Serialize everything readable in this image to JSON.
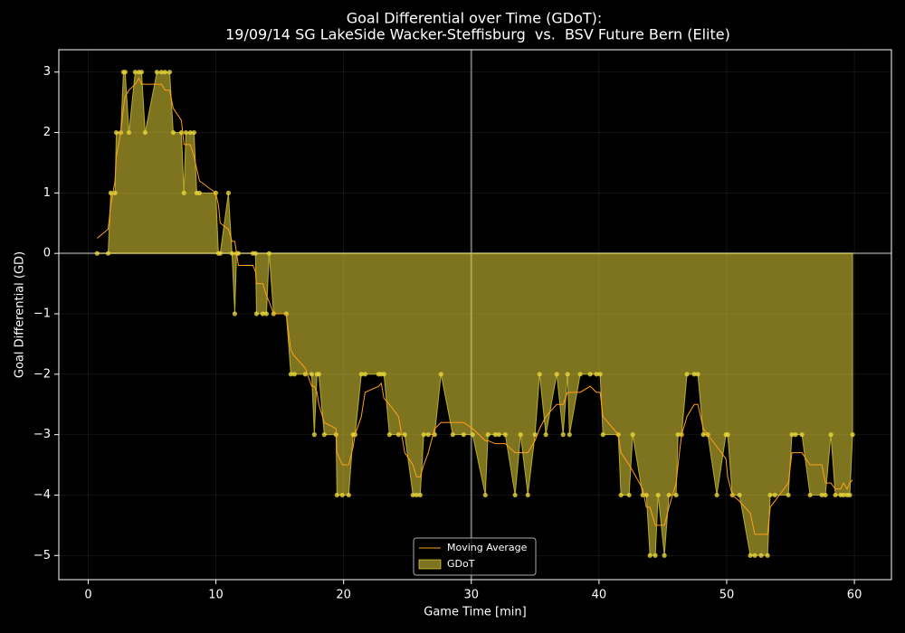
{
  "chart_data": {
    "type": "area",
    "title": "Goal Differential over Time (GDoT):",
    "subtitle": "19/09/14 SG LakeSide Wacker-Steffisburg  vs.  BSV Future Bern (Elite)",
    "x_label": "Game Time [min]",
    "y_label": "Goal Differential (GD)",
    "xlim": [
      -2.3,
      62.9
    ],
    "ylim": [
      -5.4,
      3.37
    ],
    "xticks": [
      0,
      10,
      20,
      30,
      40,
      50,
      60
    ],
    "yticks": [
      {
        "value": -5,
        "label": "−5"
      },
      {
        "value": -4,
        "label": "−4"
      },
      {
        "value": -3,
        "label": "−3"
      },
      {
        "value": -2,
        "label": "−2"
      },
      {
        "value": -1,
        "label": "−1"
      },
      0,
      1,
      2,
      3
    ],
    "grid": true,
    "vline": 30,
    "hline": 0,
    "legend": "lower center",
    "x": [
      0.7,
      1.56,
      1.77,
      2.1,
      2.2,
      2.55,
      2.76,
      2.9,
      3.19,
      3.68,
      3.97,
      4.18,
      4.46,
      5.38,
      5.74,
      6.02,
      6.38,
      6.66,
      7.3,
      7.5,
      7.65,
      8.0,
      8.29,
      8.5,
      8.71,
      9.99,
      10.2,
      10.34,
      10.98,
      11.26,
      11.48,
      11.62,
      11.76,
      12.9,
      13.1,
      13.18,
      13.67,
      13.96,
      14.17,
      14.52,
      15.51,
      15.87,
      16.15,
      17.0,
      17.5,
      17.71,
      17.92,
      18.06,
      18.49,
      19.41,
      19.48,
      19.9,
      20.4,
      20.75,
      20.9,
      21.39,
      21.68,
      22.74,
      22.95,
      23.16,
      23.59,
      24.3,
      24.79,
      25.43,
      25.71,
      26.0,
      26.28,
      26.63,
      27.13,
      27.63,
      28.55,
      29.4,
      30.1,
      31.1,
      31.31,
      31.88,
      32.16,
      32.66,
      33.43,
      33.86,
      34.43,
      34.99,
      35.35,
      35.84,
      36.69,
      37.19,
      37.54,
      37.69,
      38.53,
      39.31,
      39.8,
      40.09,
      40.31,
      41.51,
      41.72,
      42.36,
      42.64,
      43.42,
      43.71,
      43.99,
      44.41,
      44.63,
      45.12,
      45.48,
      46.04,
      46.19,
      46.47,
      46.89,
      47.46,
      47.74,
      48.17,
      48.52,
      49.23,
      49.94,
      50.08,
      50.44,
      51.0,
      51.85,
      52.2,
      52.7,
      53.2,
      53.41,
      53.77,
      54.83,
      55.11,
      55.39,
      55.89,
      56.53,
      57.45,
      57.73,
      58.16,
      58.51,
      58.93,
      59.15,
      59.43,
      59.64,
      59.86
    ],
    "series": [
      {
        "name": "Moving Average",
        "type": "line",
        "color": "#ff9f1c",
        "values": [
          0.25,
          0.4,
          0.8,
          1.2,
          1.6,
          2.0,
          2.4,
          2.6,
          2.7,
          2.8,
          2.9,
          2.8,
          2.8,
          2.8,
          2.8,
          2.7,
          2.7,
          2.4,
          2.2,
          1.8,
          1.8,
          1.8,
          1.6,
          1.4,
          1.2,
          1.0,
          0.8,
          0.5,
          0.4,
          0.2,
          0.2,
          0,
          -0.2,
          -0.2,
          -0.3,
          -0.5,
          -0.5,
          -0.7,
          -0.8,
          -1.0,
          -1.0,
          -1.6,
          -1.7,
          -1.9,
          -2.2,
          -2.2,
          -2.3,
          -2.5,
          -2.8,
          -2.9,
          -3.3,
          -3.5,
          -3.5,
          -3.2,
          -3.0,
          -2.7,
          -2.3,
          -2.2,
          -2.15,
          -2.4,
          -2.5,
          -2.7,
          -3.3,
          -3.5,
          -3.7,
          -3.7,
          -3.5,
          -3.3,
          -2.9,
          -2.8,
          -2.8,
          -2.8,
          -2.9,
          -3.1,
          -3.1,
          -3.15,
          -3.15,
          -3.15,
          -3.3,
          -3.3,
          -3.3,
          -3.1,
          -2.9,
          -2.7,
          -2.5,
          -2.5,
          -2.3,
          -2.3,
          -2.3,
          -2.2,
          -2.3,
          -2.3,
          -2.7,
          -3.0,
          -3.3,
          -3.5,
          -3.6,
          -3.9,
          -4.2,
          -4.2,
          -4.5,
          -4.5,
          -4.5,
          -4.2,
          -3.8,
          -3.5,
          -3.0,
          -2.7,
          -2.5,
          -2.5,
          -2.9,
          -3.0,
          -3.2,
          -3.4,
          -3.7,
          -4.0,
          -4.1,
          -4.3,
          -4.65,
          -4.65,
          -4.65,
          -4.2,
          -4.1,
          -3.8,
          -3.3,
          -3.3,
          -3.3,
          -3.5,
          -3.5,
          -3.8,
          -3.8,
          -3.9,
          -3.9,
          -3.8,
          -3.9,
          -3.8,
          -3.75
        ]
      },
      {
        "name": "GDoT",
        "type": "area",
        "color": "#e6d43a",
        "values": [
          0,
          0,
          1,
          1,
          2,
          2,
          3,
          3,
          2,
          3,
          3,
          3,
          2,
          3,
          3,
          3,
          3,
          2,
          2,
          1,
          2,
          2,
          2,
          1,
          1,
          1,
          0,
          0,
          1,
          0,
          -1,
          0,
          0,
          0,
          0,
          -1,
          -1,
          -1,
          0,
          -1,
          -1,
          -2,
          -2,
          -2,
          -2,
          -3,
          -2,
          -2,
          -3,
          -3,
          -4,
          -4,
          -4,
          -3,
          -3,
          -2,
          -2,
          -2,
          -2,
          -2,
          -3,
          -3,
          -3,
          -4,
          -4,
          -4,
          -3,
          -3,
          -3,
          -2,
          -3,
          -3,
          -3,
          -4,
          -3,
          -3,
          -3,
          -3,
          -4,
          -3,
          -4,
          -3,
          -2,
          -3,
          -2,
          -3,
          -2,
          -3,
          -2,
          -2,
          -2,
          -2,
          -3,
          -3,
          -4,
          -4,
          -3,
          -4,
          -4,
          -5,
          -5,
          -4,
          -5,
          -4,
          -4,
          -3,
          -3,
          -2,
          -2,
          -2,
          -3,
          -3,
          -4,
          -3,
          -3,
          -4,
          -4,
          -5,
          -5,
          -5,
          -5,
          -4,
          -4,
          -4,
          -3,
          -3,
          -3,
          -4,
          -4,
          -4,
          -3,
          -4,
          -4,
          -4,
          -4,
          -4,
          -3
        ]
      }
    ]
  }
}
